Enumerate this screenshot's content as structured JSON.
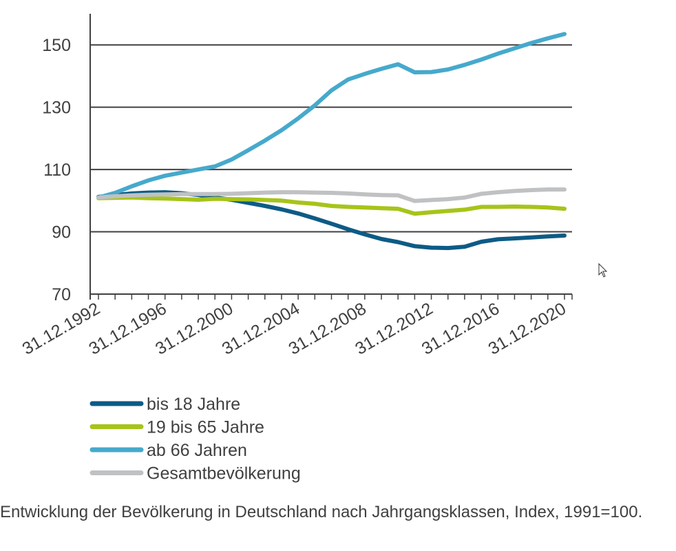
{
  "caption": "Entwicklung der Bevölkerung in Deutschland nach Jahrgangsklassen, Index, 1991=100.",
  "chart_data": {
    "type": "line",
    "title": "",
    "xlabel": "",
    "ylabel": "",
    "ylim": [
      70,
      160
    ],
    "yticks": [
      70,
      90,
      110,
      130,
      150
    ],
    "grid": "horizontal",
    "legend_position": "bottom",
    "x": [
      1992,
      1993,
      1994,
      1995,
      1996,
      1997,
      1998,
      1999,
      2000,
      2001,
      2002,
      2003,
      2004,
      2005,
      2006,
      2007,
      2008,
      2009,
      2010,
      2011,
      2012,
      2013,
      2014,
      2015,
      2016,
      2017,
      2018,
      2019,
      2020
    ],
    "x_tick_labels": [
      "31.12.1992",
      "31.12.1996",
      "31.12.2000",
      "31.12.2004",
      "31.12.2008",
      "31.12.2012",
      "31.12.2016",
      "31.12.2020"
    ],
    "x_tick_years": [
      1992,
      1996,
      2000,
      2004,
      2008,
      2012,
      2016,
      2020
    ],
    "series": [
      {
        "name": "bis 18 Jahre",
        "color": "#0d5b86",
        "values": [
          101.2,
          101.8,
          102.3,
          102.6,
          102.7,
          102.4,
          101.8,
          101.0,
          100.3,
          99.3,
          98.3,
          97.2,
          95.9,
          94.3,
          92.6,
          90.8,
          89.2,
          87.7,
          86.7,
          85.4,
          84.9,
          84.8,
          85.2,
          86.8,
          87.6,
          87.9,
          88.2,
          88.5,
          88.8
        ]
      },
      {
        "name": "19 bis 65 Jahre",
        "color": "#a6c41a",
        "values": [
          100.8,
          100.9,
          101.0,
          100.8,
          100.7,
          100.5,
          100.3,
          100.6,
          100.5,
          100.4,
          100.2,
          100.0,
          99.4,
          99.0,
          98.3,
          98.0,
          97.8,
          97.6,
          97.4,
          95.8,
          96.3,
          96.7,
          97.1,
          98.0,
          98.0,
          98.1,
          98.0,
          97.8,
          97.4
        ]
      },
      {
        "name": "ab 66 Jahren",
        "color": "#46a9cc",
        "values": [
          101.0,
          102.5,
          104.6,
          106.5,
          108.0,
          109.0,
          110.0,
          111.0,
          113.2,
          116.2,
          119.3,
          122.6,
          126.4,
          130.6,
          135.4,
          138.9,
          140.7,
          142.3,
          143.8,
          141.2,
          141.3,
          142.1,
          143.6,
          145.3,
          147.2,
          148.9,
          150.6,
          152.1,
          153.5
        ]
      },
      {
        "name": "Gesamtbevölkerung",
        "color": "#bfc1c2",
        "values": [
          101.0,
          101.4,
          101.7,
          101.9,
          102.0,
          102.1,
          102.1,
          102.1,
          102.2,
          102.4,
          102.6,
          102.7,
          102.7,
          102.6,
          102.5,
          102.3,
          102.0,
          101.8,
          101.7,
          99.9,
          100.2,
          100.5,
          101.0,
          102.2,
          102.7,
          103.1,
          103.4,
          103.6,
          103.6
        ]
      }
    ]
  }
}
